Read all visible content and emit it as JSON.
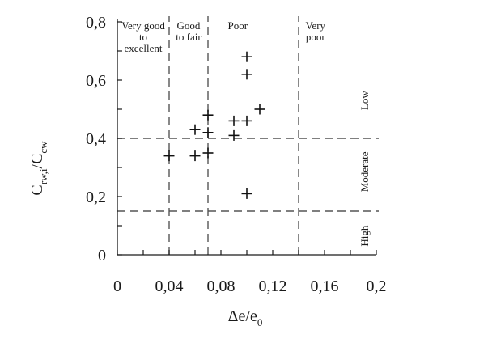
{
  "chart_data": {
    "type": "scatter",
    "marker": "plus",
    "xlim": [
      0,
      0.2
    ],
    "ylim": [
      0,
      0.8
    ],
    "x_ticks": [
      "0",
      "0,04",
      "0,08",
      "0,12",
      "0,16",
      "0,2"
    ],
    "y_ticks": [
      "0",
      "0,2",
      "0,4",
      "0,6",
      "0,8"
    ],
    "x_tick_values": [
      0,
      0.04,
      0.08,
      0.12,
      0.16,
      0.2
    ],
    "y_tick_values": [
      0,
      0.2,
      0.4,
      0.6,
      0.8
    ],
    "xlabel": {
      "main": "Δe/e",
      "sub": "0"
    },
    "ylabel": {
      "p1": "C",
      "s1": "rw,i",
      "p2": "/C",
      "s2": "cw"
    },
    "vertical_thresholds": [
      0.04,
      0.07,
      0.14
    ],
    "horizontal_thresholds": [
      0.15,
      0.4
    ],
    "x_regions": [
      {
        "lines": [
          "Very good",
          "to",
          "excellent"
        ],
        "x": 0.02
      },
      {
        "lines": [
          "Good",
          "to fair"
        ],
        "x": 0.055
      },
      {
        "lines": [
          "Poor"
        ],
        "x": 0.093
      },
      {
        "lines": [
          "Very",
          "poor"
        ],
        "x": 0.153
      }
    ],
    "y_classes": [
      {
        "label": "Low",
        "y": 0.53
      },
      {
        "label": "Moderate",
        "y": 0.285
      },
      {
        "label": "High",
        "y": 0.065
      }
    ],
    "points": [
      {
        "x": 0.04,
        "y": 0.34
      },
      {
        "x": 0.06,
        "y": 0.43
      },
      {
        "x": 0.06,
        "y": 0.34
      },
      {
        "x": 0.07,
        "y": 0.48
      },
      {
        "x": 0.07,
        "y": 0.42
      },
      {
        "x": 0.07,
        "y": 0.35
      },
      {
        "x": 0.09,
        "y": 0.46
      },
      {
        "x": 0.09,
        "y": 0.41
      },
      {
        "x": 0.1,
        "y": 0.68
      },
      {
        "x": 0.1,
        "y": 0.62
      },
      {
        "x": 0.1,
        "y": 0.46
      },
      {
        "x": 0.1,
        "y": 0.21
      },
      {
        "x": 0.11,
        "y": 0.5
      }
    ],
    "grid": false,
    "threshold_style": "dashed",
    "colors": {
      "axis": "#1a1a1a",
      "threshold": "#555555",
      "marker": "#111111"
    }
  }
}
